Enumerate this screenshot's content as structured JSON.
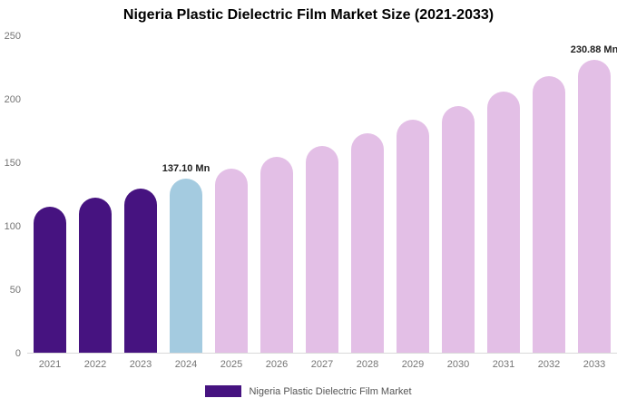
{
  "chart_data": {
    "type": "bar",
    "title": "Nigeria Plastic Dielectric Film Market Size (2021-2033)",
    "xlabel": "",
    "ylabel": "",
    "unit": "Mn",
    "ylim": [
      0,
      250
    ],
    "yticks": [
      0,
      50,
      100,
      150,
      200,
      250
    ],
    "grid": false,
    "categories": [
      "2021",
      "2022",
      "2023",
      "2024",
      "2025",
      "2026",
      "2027",
      "2028",
      "2029",
      "2030",
      "2031",
      "2032",
      "2033"
    ],
    "values": [
      115.2,
      122.1,
      129.4,
      137.1,
      145.3,
      154.0,
      163.2,
      173.0,
      183.3,
      194.3,
      205.9,
      218.2,
      230.88
    ],
    "bar_colors": [
      "#461380",
      "#461380",
      "#461380",
      "#a4cbe0",
      "#e3bfe6",
      "#e3bfe6",
      "#e3bfe6",
      "#e3bfe6",
      "#e3bfe6",
      "#e3bfe6",
      "#e3bfe6",
      "#e3bfe6",
      "#e3bfe6"
    ],
    "annotations": [
      {
        "category": "2024",
        "text": "137.10 Mn"
      },
      {
        "category": "2033",
        "text": "230.88 Mn"
      }
    ],
    "legend": {
      "position": "bottom",
      "entries": [
        {
          "label": "Nigeria Plastic Dielectric Film Market",
          "color": "#461380"
        }
      ]
    },
    "colors": {
      "historical": "#461380",
      "highlight_year": "#a4cbe0",
      "forecast": "#e3bfe6",
      "axis_text": "#757575",
      "baseline": "#d9d9d9"
    }
  }
}
